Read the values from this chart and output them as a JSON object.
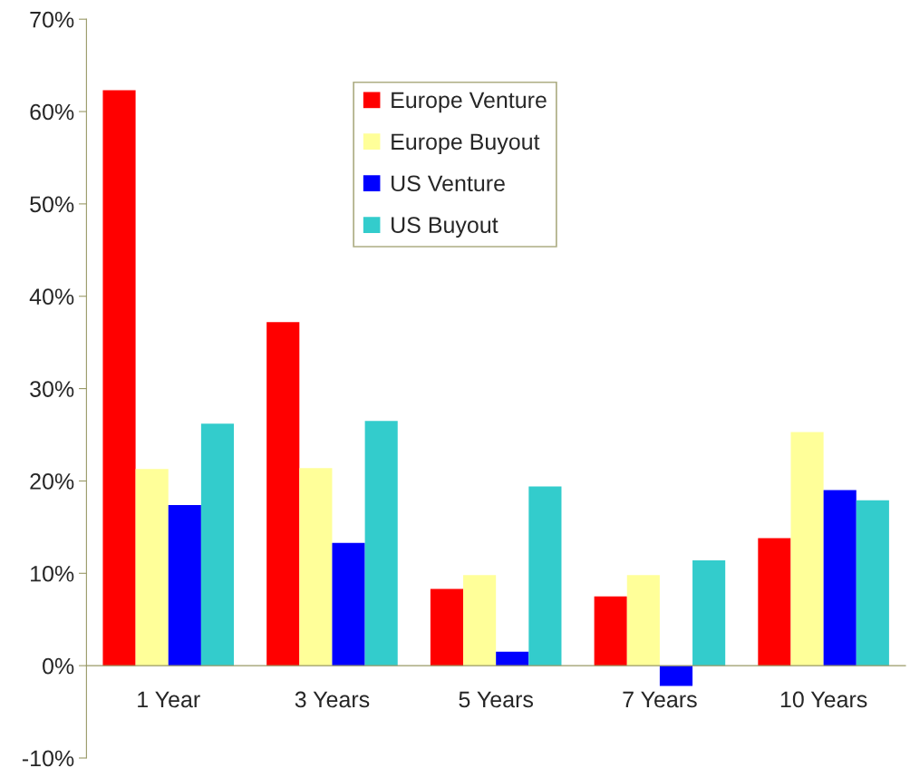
{
  "chart_data": {
    "type": "bar",
    "categories": [
      "1 Year",
      "3 Years",
      "5 Years",
      "7 Years",
      "10 Years"
    ],
    "series": [
      {
        "name": "Europe Venture",
        "color": "#ff0000",
        "values": [
          62.3,
          37.2,
          8.3,
          7.5,
          13.8
        ]
      },
      {
        "name": "Europe Buyout",
        "color": "#ffff99",
        "values": [
          21.3,
          21.4,
          9.8,
          9.8,
          25.3
        ]
      },
      {
        "name": "US Venture",
        "color": "#0000ff",
        "values": [
          17.4,
          13.3,
          1.5,
          -2.2,
          19.0
        ]
      },
      {
        "name": "US Buyout",
        "color": "#33cccc",
        "values": [
          26.2,
          26.5,
          19.4,
          11.4,
          17.9
        ]
      }
    ],
    "ylim": [
      -10,
      70
    ],
    "yticks": [
      {
        "value": -10,
        "label": "-10%"
      },
      {
        "value": 0,
        "label": "0%"
      },
      {
        "value": 10,
        "label": "10%"
      },
      {
        "value": 20,
        "label": "20%"
      },
      {
        "value": 30,
        "label": "30%"
      },
      {
        "value": 40,
        "label": "40%"
      },
      {
        "value": 50,
        "label": "50%"
      },
      {
        "value": 60,
        "label": "60%"
      },
      {
        "value": 70,
        "label": "70%"
      }
    ],
    "grid": false,
    "legend": "top"
  }
}
